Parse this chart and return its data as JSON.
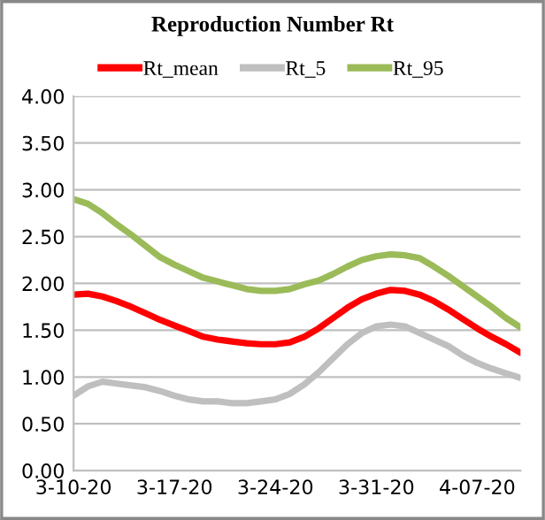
{
  "chart_data": {
    "type": "line",
    "title": "Reproduction Number Rt",
    "categories": [
      "3-10-20",
      null,
      null,
      null,
      null,
      null,
      null,
      "3-17-20",
      null,
      null,
      null,
      null,
      null,
      null,
      "3-24-20",
      null,
      null,
      null,
      null,
      null,
      null,
      "3-31-20",
      null,
      null,
      null,
      null,
      null,
      null,
      "4-07-20",
      null,
      null,
      null
    ],
    "series": [
      {
        "name": "Rt_mean",
        "color": "#ff0000",
        "values": [
          1.88,
          1.89,
          1.86,
          1.81,
          1.75,
          1.68,
          1.61,
          1.55,
          1.49,
          1.43,
          1.4,
          1.38,
          1.36,
          1.35,
          1.35,
          1.37,
          1.43,
          1.52,
          1.63,
          1.74,
          1.83,
          1.89,
          1.93,
          1.92,
          1.88,
          1.81,
          1.72,
          1.62,
          1.52,
          1.43,
          1.35,
          1.26
        ]
      },
      {
        "name": "Rt_5",
        "color": "#bfbfbf",
        "values": [
          0.8,
          0.9,
          0.95,
          0.93,
          0.91,
          0.89,
          0.85,
          0.8,
          0.76,
          0.74,
          0.74,
          0.72,
          0.72,
          0.74,
          0.76,
          0.82,
          0.92,
          1.05,
          1.2,
          1.35,
          1.47,
          1.54,
          1.56,
          1.54,
          1.47,
          1.4,
          1.33,
          1.23,
          1.15,
          1.09,
          1.04,
          0.99
        ]
      },
      {
        "name": "Rt_95",
        "color": "#9bbb59",
        "values": [
          2.9,
          2.85,
          2.75,
          2.63,
          2.52,
          2.4,
          2.28,
          2.2,
          2.13,
          2.06,
          2.02,
          1.98,
          1.94,
          1.92,
          1.92,
          1.94,
          1.99,
          2.03,
          2.1,
          2.18,
          2.25,
          2.29,
          2.31,
          2.3,
          2.27,
          2.18,
          2.08,
          1.97,
          1.86,
          1.75,
          1.63,
          1.53
        ]
      }
    ],
    "ylim": [
      0,
      4
    ],
    "yticks": [
      {
        "value": 0,
        "label": "0.00"
      },
      {
        "value": 0.5,
        "label": "0.50"
      },
      {
        "value": 1,
        "label": "1.00"
      },
      {
        "value": 1.5,
        "label": "1.50"
      },
      {
        "value": 2,
        "label": "2.00"
      },
      {
        "value": 2.5,
        "label": "2.50"
      },
      {
        "value": 3,
        "label": "3.00"
      },
      {
        "value": 3.5,
        "label": "3.50"
      },
      {
        "value": 4,
        "label": "4.00"
      }
    ],
    "grid": "y",
    "legend": "top",
    "marker": "none",
    "line_style": "solid"
  }
}
